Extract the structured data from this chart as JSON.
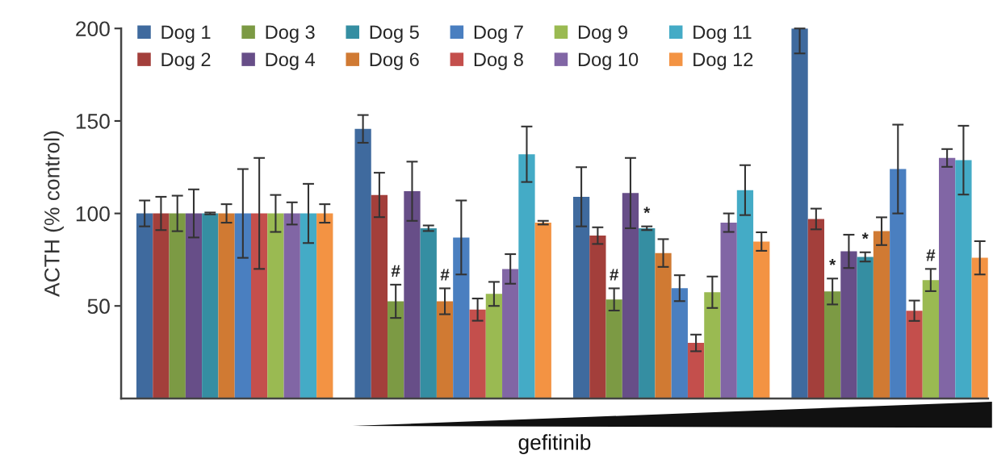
{
  "chart_data": {
    "type": "bar",
    "xlabel": "gefitinib",
    "ylabel": "ACTH (% control)",
    "categories": [
      null,
      null,
      null,
      null
    ],
    "ylim": [
      0,
      200
    ],
    "yticks": [
      50,
      100,
      150,
      200
    ],
    "tick_labels": "y",
    "grid": false,
    "legend": "top",
    "series": [
      {
        "name": "Dog 1",
        "color": "#3f6a9e",
        "values": [
          100,
          145.7,
          109,
          200
        ],
        "errors": [
          7,
          7.5,
          16,
          [
            186.5,
            200
          ]
        ]
      },
      {
        "name": "Dog 2",
        "color": "#a33f3b",
        "values": [
          100,
          110,
          88,
          97
        ],
        "errors": [
          9,
          12,
          4.5,
          5.6
        ]
      },
      {
        "name": "Dog 3",
        "color": "#7c9a44",
        "values": [
          100,
          52.5,
          53.5,
          57.8
        ],
        "errors": [
          9.6,
          9,
          6,
          7
        ],
        "value_labels": [
          null,
          "#",
          "#",
          "*"
        ]
      },
      {
        "name": "Dog 4",
        "color": "#674e88",
        "values": [
          100,
          112,
          111,
          79.5
        ],
        "errors": [
          13,
          16,
          19,
          9
        ]
      },
      {
        "name": "Dog 5",
        "color": "#358ea2",
        "values": [
          100,
          92,
          92,
          76.5
        ],
        "errors": [
          0.5,
          1.5,
          1,
          2.5
        ],
        "value_labels": [
          null,
          null,
          "*",
          "*"
        ]
      },
      {
        "name": "Dog 6",
        "color": "#d07a33",
        "values": [
          100,
          52.5,
          78.6,
          90.4
        ],
        "errors": [
          5,
          7,
          7.5,
          7.5
        ],
        "value_labels": [
          null,
          "#",
          null,
          null
        ]
      },
      {
        "name": "Dog 7",
        "color": "#4a7fc0",
        "values": [
          100,
          87,
          59.6,
          124
        ],
        "errors": [
          24,
          20,
          7,
          24
        ]
      },
      {
        "name": "Dog 8",
        "color": "#c44f4c",
        "values": [
          100,
          48,
          30,
          47.4
        ],
        "errors": [
          30,
          6,
          4.5,
          5.5
        ]
      },
      {
        "name": "Dog 9",
        "color": "#9aba52",
        "values": [
          100,
          56.5,
          57.4,
          64
        ],
        "errors": [
          10,
          6.5,
          8.5,
          6
        ],
        "value_labels": [
          null,
          null,
          null,
          "#"
        ]
      },
      {
        "name": "Dog 10",
        "color": "#8166a5",
        "values": [
          100,
          70,
          95,
          130
        ],
        "errors": [
          6,
          8,
          5,
          4.8
        ]
      },
      {
        "name": "Dog 11",
        "color": "#44abc6",
        "values": [
          100,
          132,
          112.6,
          128.8
        ],
        "errors": [
          16,
          15,
          13.5,
          18.6
        ]
      },
      {
        "name": "Dog 12",
        "color": "#f39343",
        "values": [
          100,
          95,
          84.8,
          76
        ],
        "errors": [
          5,
          1,
          5,
          9
        ]
      }
    ]
  }
}
